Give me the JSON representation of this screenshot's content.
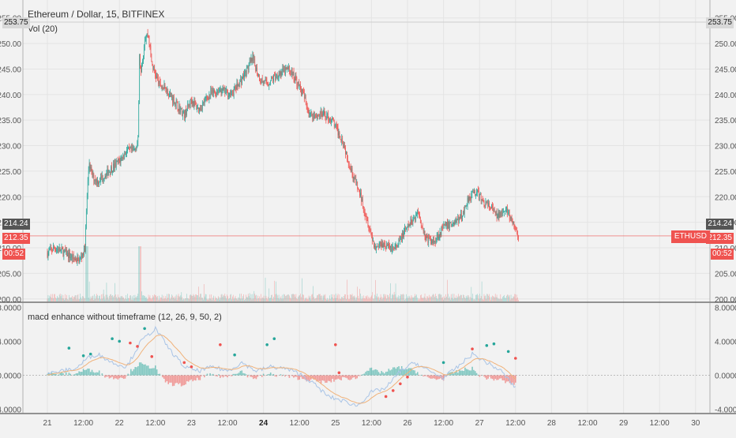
{
  "header": {
    "symbol": "Ethereum / Dollar, 15, BITFINEX",
    "volume_indicator": "Vol (20)",
    "macd_indicator": "macd enhance without timeframe (12, 26, 9, 50, 2)"
  },
  "price_tags": {
    "top_line": "253.75",
    "last_close": "214.24",
    "current": "212.35",
    "countdown": "00:52",
    "symbol_badge": "ETHUSD"
  },
  "colors": {
    "up": "#26a69a",
    "down": "#ef5350",
    "background": "#f2f2f2",
    "grid": "#e4e4e4",
    "signal_line": "#f0b27a",
    "macd_line": "#a9c4e6"
  },
  "chart_data": [
    {
      "type": "candlestick",
      "ylim": [
        199.5,
        256.5
      ],
      "y_ticks": [
        "200.00",
        "205.00",
        "210.00",
        "215.00",
        "220.00",
        "225.00",
        "230.00",
        "235.00",
        "240.00",
        "245.00",
        "250.00",
        "255.00"
      ],
      "x_ticks": [
        "21",
        "12:00",
        "22",
        "12:00",
        "23",
        "12:00",
        "24",
        "12:00",
        "25",
        "12:00",
        "26",
        "12:00",
        "27",
        "12:00",
        "28",
        "12:00",
        "29",
        "12:00",
        "30"
      ],
      "price_path": [
        [
          0,
          209
        ],
        [
          0.1,
          210
        ],
        [
          0.25,
          209
        ],
        [
          0.35,
          208
        ],
        [
          0.45,
          207.5
        ],
        [
          0.52,
          210
        ],
        [
          0.55,
          220
        ],
        [
          0.58,
          227
        ],
        [
          0.62,
          224
        ],
        [
          0.7,
          223
        ],
        [
          0.85,
          225
        ],
        [
          1.0,
          227
        ],
        [
          1.1,
          229
        ],
        [
          1.2,
          229
        ],
        [
          1.26,
          231
        ],
        [
          1.28,
          248
        ],
        [
          1.3,
          244
        ],
        [
          1.35,
          251
        ],
        [
          1.4,
          252
        ],
        [
          1.45,
          246
        ],
        [
          1.55,
          242
        ],
        [
          1.65,
          241
        ],
        [
          1.8,
          238
        ],
        [
          1.9,
          236
        ],
        [
          2.0,
          239
        ],
        [
          2.1,
          237
        ],
        [
          2.25,
          240
        ],
        [
          2.4,
          241
        ],
        [
          2.55,
          240
        ],
        [
          2.7,
          243
        ],
        [
          2.85,
          247
        ],
        [
          2.95,
          243
        ],
        [
          3.05,
          242
        ],
        [
          3.2,
          244
        ],
        [
          3.35,
          245
        ],
        [
          3.45,
          243
        ],
        [
          3.55,
          240
        ],
        [
          3.65,
          236
        ],
        [
          3.75,
          236
        ],
        [
          3.85,
          236
        ],
        [
          3.95,
          235
        ],
        [
          4.1,
          231
        ],
        [
          4.2,
          226
        ],
        [
          4.35,
          220
        ],
        [
          4.45,
          215
        ],
        [
          4.55,
          210
        ],
        [
          4.65,
          211
        ],
        [
          4.75,
          210
        ],
        [
          4.85,
          210
        ],
        [
          4.95,
          213
        ],
        [
          5.05,
          215
        ],
        [
          5.15,
          217
        ],
        [
          5.25,
          212
        ],
        [
          5.35,
          211
        ],
        [
          5.5,
          214
        ],
        [
          5.65,
          215
        ],
        [
          5.75,
          216
        ],
        [
          5.85,
          220
        ],
        [
          5.95,
          221
        ],
        [
          6.05,
          219
        ],
        [
          6.15,
          218
        ],
        [
          6.25,
          216
        ],
        [
          6.35,
          218
        ],
        [
          6.45,
          215
        ],
        [
          6.55,
          212
        ]
      ],
      "last_close": 212.35
    },
    {
      "type": "bar",
      "title": "Vol (20)",
      "values_note": "volume histogram shown without scale"
    },
    {
      "type": "line",
      "title": "macd enhance without timeframe (12, 26, 9, 50, 2)",
      "ylim": [
        -4.5,
        8.5
      ],
      "y_ticks": [
        "8.0000",
        "4.0000",
        "0.0000",
        "-4.0000"
      ],
      "macd_path": [
        [
          0,
          0.2
        ],
        [
          0.2,
          0.5
        ],
        [
          0.4,
          0.8
        ],
        [
          0.55,
          2
        ],
        [
          0.7,
          2.5
        ],
        [
          0.9,
          1.5
        ],
        [
          1.1,
          1
        ],
        [
          1.3,
          4
        ],
        [
          1.5,
          5.5
        ],
        [
          1.7,
          3
        ],
        [
          1.9,
          1
        ],
        [
          2.1,
          0.5
        ],
        [
          2.3,
          1
        ],
        [
          2.5,
          0.5
        ],
        [
          2.7,
          1.5
        ],
        [
          2.9,
          0.5
        ],
        [
          3.1,
          1
        ],
        [
          3.3,
          0.8
        ],
        [
          3.5,
          0.2
        ],
        [
          3.7,
          -1
        ],
        [
          3.9,
          -2.5
        ],
        [
          4.1,
          -3
        ],
        [
          4.3,
          -3.6
        ],
        [
          4.5,
          -2
        ],
        [
          4.7,
          -1.5
        ],
        [
          4.9,
          0.5
        ],
        [
          5.1,
          1.5
        ],
        [
          5.3,
          0.5
        ],
        [
          5.5,
          -0.3
        ],
        [
          5.7,
          1
        ],
        [
          5.9,
          2.5
        ],
        [
          6.1,
          1.5
        ],
        [
          6.3,
          0.5
        ],
        [
          6.5,
          -1.5
        ]
      ]
    }
  ]
}
